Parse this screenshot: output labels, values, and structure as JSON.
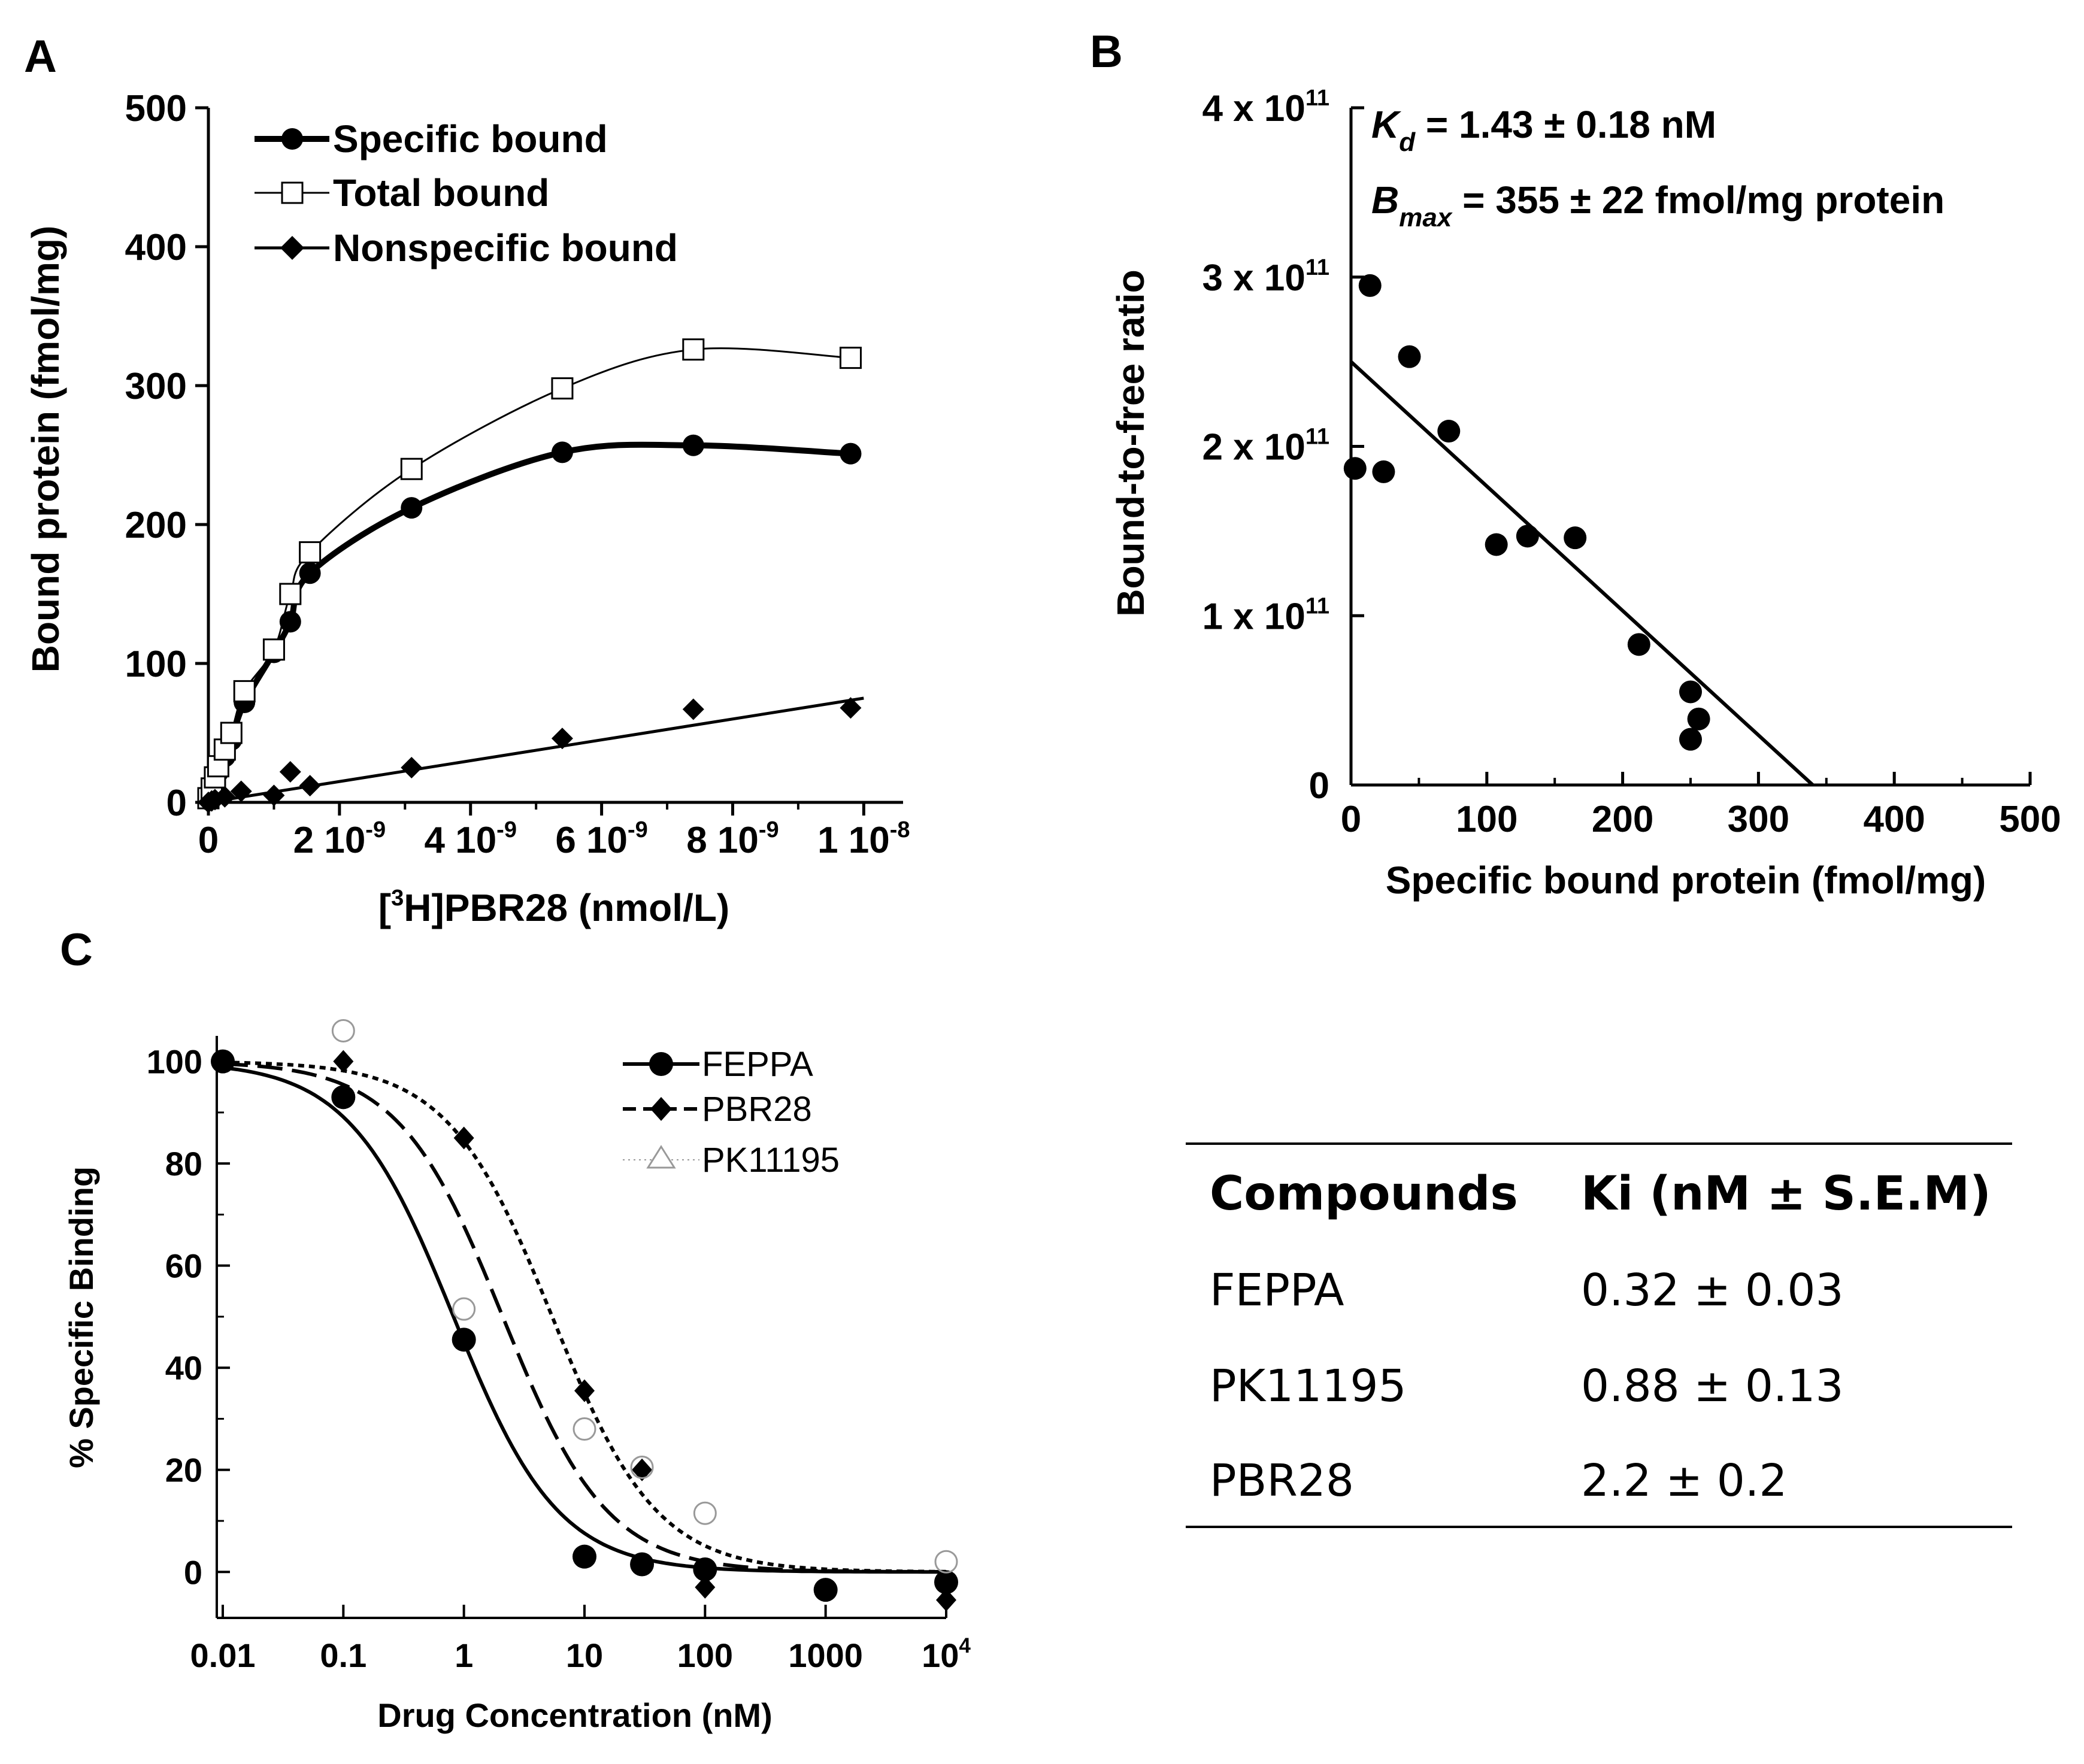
{
  "chart_data": [
    {
      "panel": "A",
      "type": "line",
      "xlabel_prefix": "[",
      "xlabel_sup": "3",
      "xlabel_suffix": "H]PBR28 (nmol/L)",
      "ylabel": "Bound protein (fmol/mg)",
      "xlim": [
        0,
        1.06e-08
      ],
      "ylim": [
        0,
        500
      ],
      "yticks": [
        "0",
        "100",
        "200",
        "300",
        "400",
        "500"
      ],
      "xtick_labels": [
        {
          "value": 0,
          "base": "0",
          "exp": ""
        },
        {
          "value": 2e-09,
          "base": "2 10",
          "exp": "-9"
        },
        {
          "value": 4e-09,
          "base": "4 10",
          "exp": "-9"
        },
        {
          "value": 6e-09,
          "base": "6 10",
          "exp": "-9"
        },
        {
          "value": 8e-09,
          "base": "8 10",
          "exp": "-9"
        },
        {
          "value": 1e-08,
          "base": "1 10",
          "exp": "-8"
        }
      ],
      "legend": [
        "Specific bound",
        "Total bound",
        "Nonspecific bound"
      ],
      "series": [
        {
          "name": "Specific bound",
          "x": [
            0,
            5e-11,
            1e-10,
            1.5e-10,
            2.5e-10,
            3.5e-10,
            5.5e-10,
            1e-09,
            1.25e-09,
            1.55e-09,
            3.1e-09,
            5.4e-09,
            7.4e-09,
            9.8e-09
          ],
          "y": [
            2,
            8,
            15,
            22,
            33,
            45,
            72,
            108,
            130,
            165,
            212,
            252,
            257,
            251
          ]
        },
        {
          "name": "Total bound",
          "x": [
            0,
            5e-11,
            1e-10,
            1.5e-10,
            2.5e-10,
            3.5e-10,
            5.5e-10,
            1e-09,
            1.25e-09,
            1.55e-09,
            3.1e-09,
            5.4e-09,
            7.4e-09,
            9.8e-09
          ],
          "y": [
            3,
            10,
            18,
            26,
            38,
            50,
            80,
            110,
            150,
            180,
            240,
            298,
            326,
            320
          ]
        },
        {
          "name": "Nonspecific bound",
          "x": [
            0,
            5e-11,
            1e-10,
            2.5e-10,
            5e-10,
            1e-09,
            1.25e-09,
            1.55e-09,
            3.1e-09,
            5.4e-09,
            7.4e-09,
            9.8e-09
          ],
          "y": [
            0,
            1,
            2,
            4,
            8,
            5,
            22,
            12,
            25,
            46,
            67,
            68
          ]
        }
      ]
    },
    {
      "panel": "B",
      "type": "scatter",
      "xlabel": "Specific bound protein (fmol/mg)",
      "ylabel": "Bound-to-free ratio",
      "xlim": [
        0,
        500
      ],
      "ylim": [
        0,
        400000000000.0
      ],
      "xticks": [
        "0",
        "100",
        "200",
        "300",
        "400",
        "500"
      ],
      "ytick_labels": [
        {
          "value": 0,
          "base": "0",
          "exp": ""
        },
        {
          "value": 100000000000.0,
          "base": "1 x 10",
          "exp": "11"
        },
        {
          "value": 200000000000.0,
          "base": "2 x 10",
          "exp": "11"
        },
        {
          "value": 300000000000.0,
          "base": "3 x 10",
          "exp": "11"
        },
        {
          "value": 400000000000.0,
          "base": "4 x 10",
          "exp": "11"
        }
      ],
      "points": {
        "x": [
          3,
          14,
          24,
          43,
          72,
          107,
          130,
          165,
          212,
          250,
          256,
          250
        ],
        "y": [
          187000000000.0,
          295000000000.0,
          185000000000.0,
          253000000000.0,
          209000000000.0,
          142000000000.0,
          147000000000.0,
          146000000000.0,
          83000000000.0,
          55000000000.0,
          39000000000.0,
          27000000000.0
        ]
      },
      "fit_line": {
        "x": [
          0,
          340
        ],
        "y": [
          250000000000.0,
          0
        ]
      },
      "annotation_kd": {
        "sym": "K",
        "sub": "d",
        "value": " = 1.43 ± 0.18 nM"
      },
      "annotation_bmax": {
        "sym": "B",
        "sub": "max",
        "value": " = 355 ± 22 fmol/mg protein"
      }
    },
    {
      "panel": "C",
      "type": "scatter",
      "xlabel": "Drug Concentration (nM)",
      "ylabel": "% Specific Binding",
      "xscale": "log",
      "xlim": [
        0.01,
        10000
      ],
      "ylim": [
        -9,
        105
      ],
      "yticks": [
        "0",
        "20",
        "40",
        "60",
        "80",
        "100"
      ],
      "xtick_labels": [
        {
          "value": 0.01,
          "base": "0.01",
          "exp": ""
        },
        {
          "value": 0.1,
          "base": "0.1",
          "exp": ""
        },
        {
          "value": 1,
          "base": "1",
          "exp": ""
        },
        {
          "value": 10,
          "base": "10",
          "exp": ""
        },
        {
          "value": 100,
          "base": "100",
          "exp": ""
        },
        {
          "value": 1000,
          "base": "1000",
          "exp": ""
        },
        {
          "value": 10000,
          "base": "10",
          "exp": "4"
        }
      ],
      "legend": [
        "FEPPA",
        "PBR28",
        "PK11195"
      ],
      "series": [
        {
          "name": "FEPPA",
          "x": [
            0.01,
            0.1,
            1,
            10,
            30,
            100,
            1000,
            10000
          ],
          "y": [
            100,
            93,
            45.5,
            3,
            1.5,
            0.5,
            -3.5,
            -2
          ],
          "ic50": 0.82
        },
        {
          "name": "PBR28",
          "x": [
            0.01,
            0.1,
            1,
            10,
            30,
            100,
            10000
          ],
          "y": [
            100,
            100,
            85,
            35.5,
            20,
            -3,
            -5.5
          ],
          "ic50": 5.4
        },
        {
          "name": "PK11195",
          "x": [
            0.1,
            1,
            10,
            30,
            100,
            10000
          ],
          "y": [
            106,
            51.5,
            28,
            20.5,
            11.5,
            2
          ],
          "ic50": 2.1
        }
      ]
    }
  ],
  "panel_labels": {
    "a": "A",
    "b": "B",
    "c": "C"
  },
  "table": {
    "headers": [
      "Compounds",
      "Ki (nM ± S.E.M)"
    ],
    "rows": [
      [
        "FEPPA",
        "0.32 ± 0.03"
      ],
      [
        "PK11195",
        "0.88 ± 0.13"
      ],
      [
        "PBR28",
        "2.2 ± 0.2"
      ]
    ]
  }
}
